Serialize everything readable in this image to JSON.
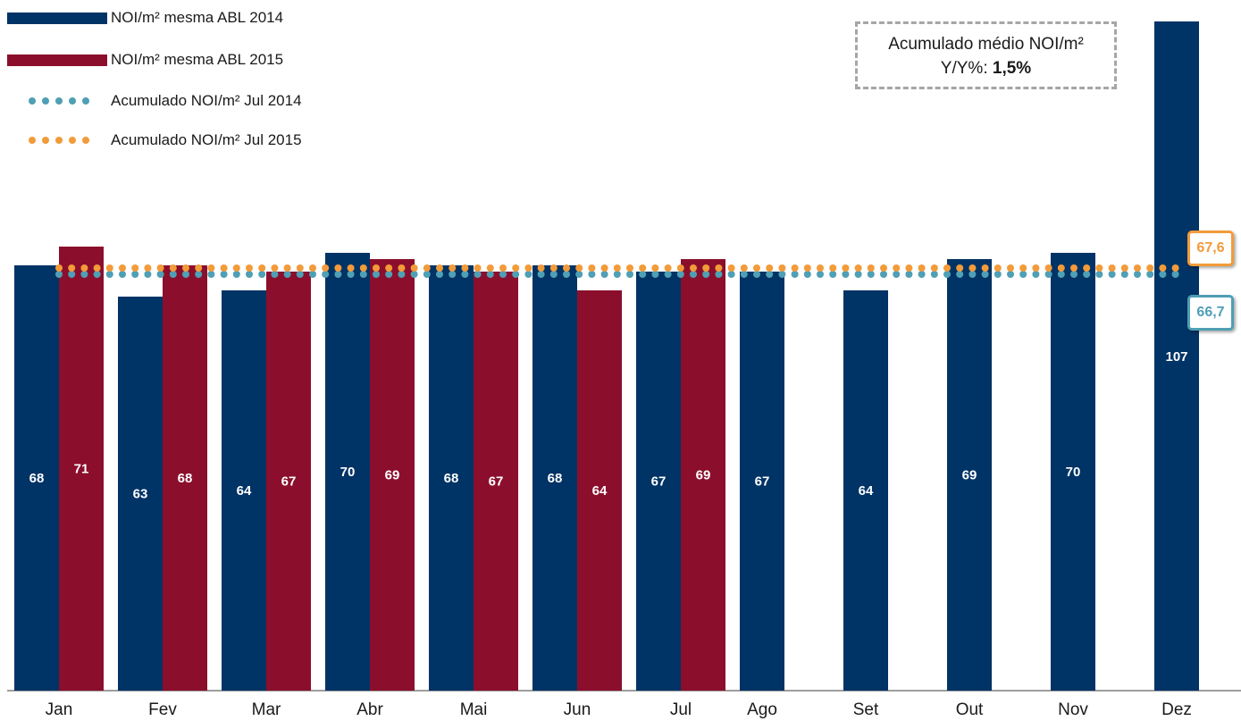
{
  "chart_data": {
    "type": "bar",
    "categories": [
      "Jan",
      "Fev",
      "Mar",
      "Abr",
      "Mai",
      "Jun",
      "Jul",
      "Ago",
      "Set",
      "Out",
      "Nov",
      "Dez"
    ],
    "series": [
      {
        "name": "NOI/m² mesma ABL 2014",
        "color": "#003366",
        "values": [
          68,
          63,
          64,
          70,
          68,
          68,
          67,
          67,
          64,
          69,
          70,
          107
        ]
      },
      {
        "name": "NOI/m² mesma ABL 2015",
        "color": "#8b0f2c",
        "values": [
          71,
          68,
          67,
          69,
          67,
          64,
          69,
          null,
          null,
          null,
          null,
          null
        ]
      }
    ],
    "reference_lines": [
      {
        "name": "Acumulado NOI/m² Jul 2014",
        "value": 66.7,
        "label": "66,7",
        "color": "#4f9fb5"
      },
      {
        "name": "Acumulado NOI/m² Jul 2015",
        "value": 67.6,
        "label": "67,6",
        "color": "#f29b3a"
      }
    ],
    "annotation": {
      "line1": "Acumulado médio NOI/m²",
      "line2_prefix": "Y/Y%: ",
      "line2_value": "1,5%"
    },
    "grid": false,
    "legend_position": "top-left",
    "data_labels": true
  }
}
